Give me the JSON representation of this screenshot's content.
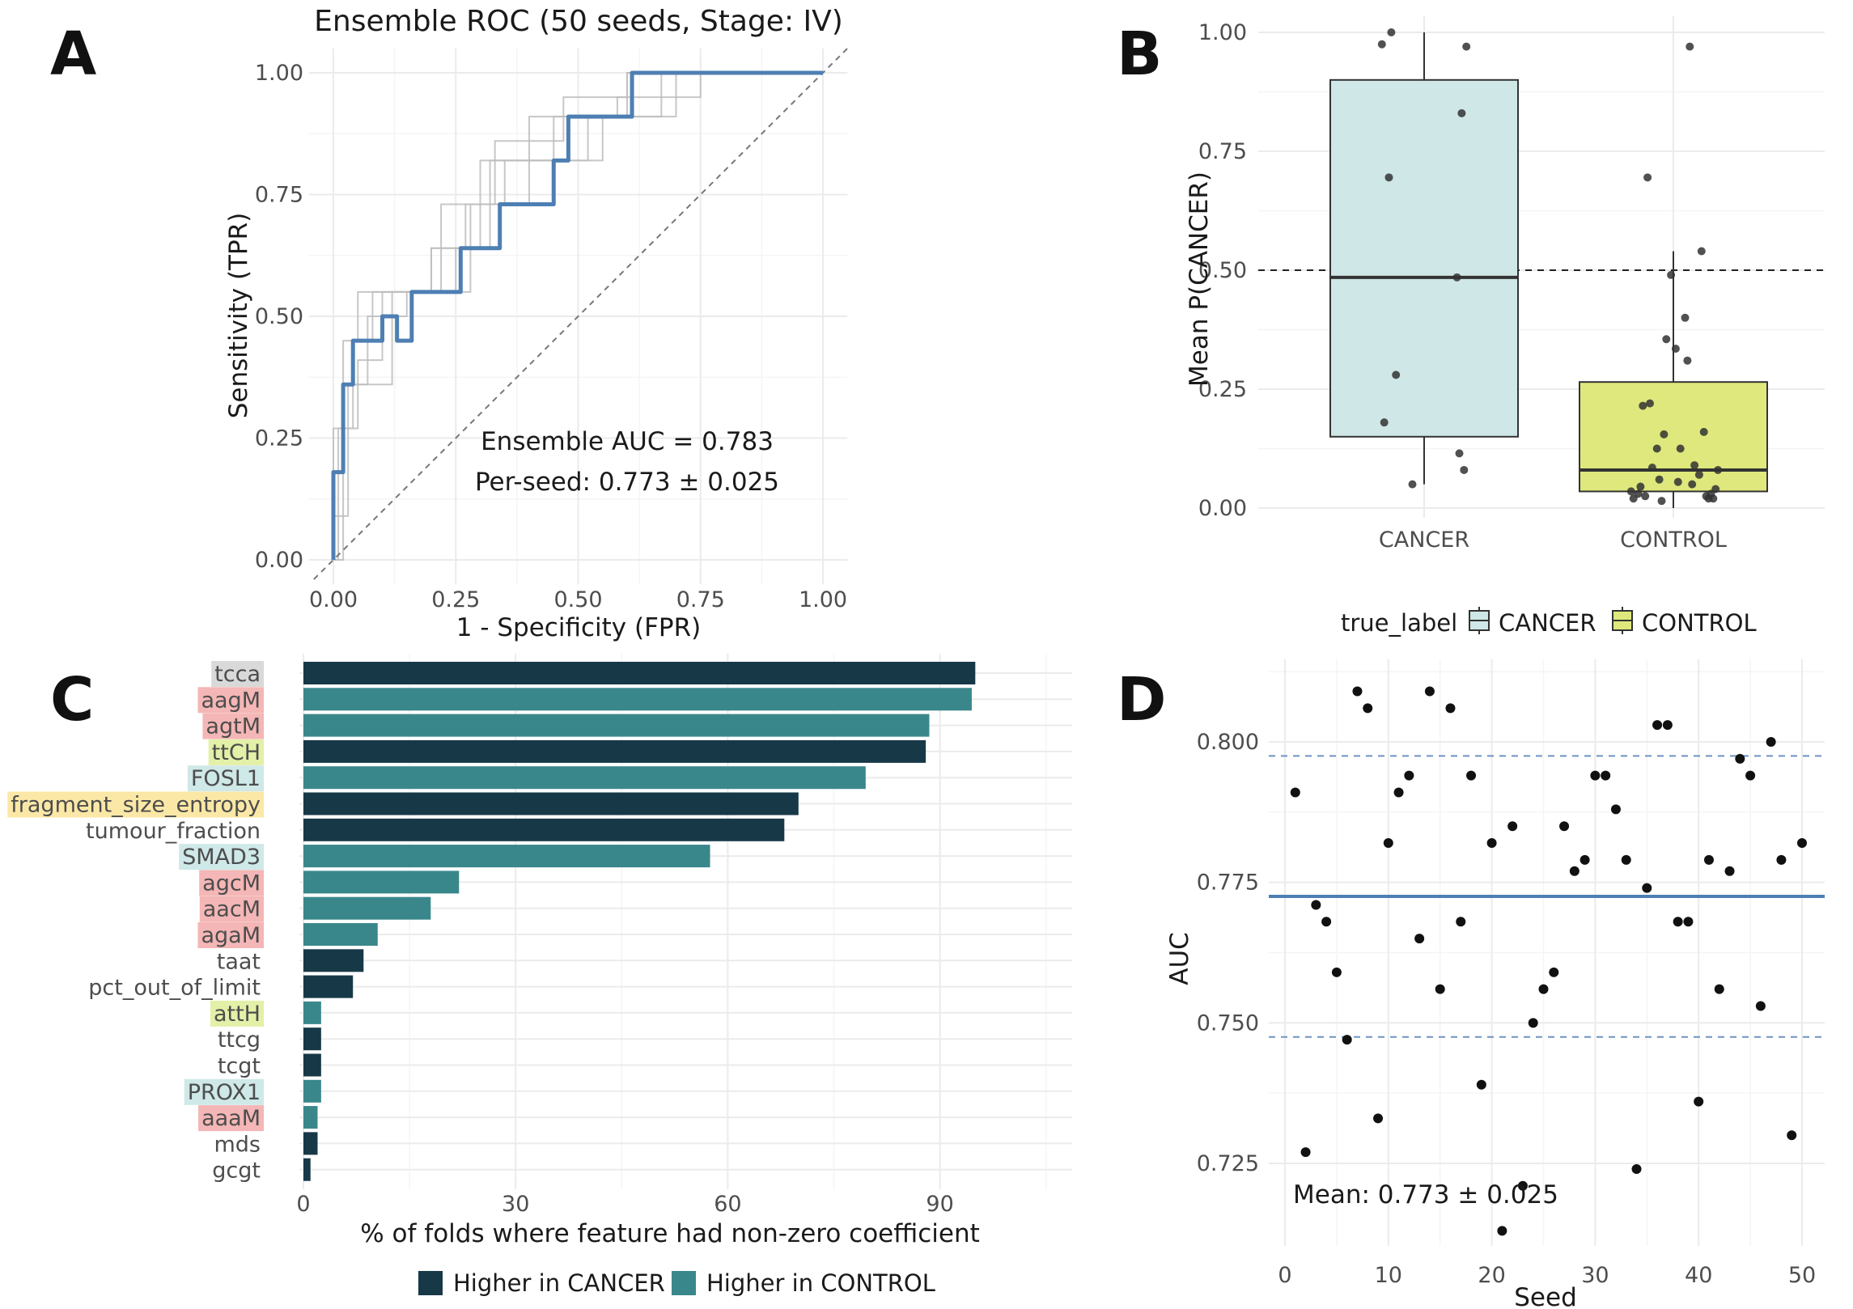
{
  "panels": [
    {
      "label": "A"
    },
    {
      "label": "B"
    },
    {
      "label": "C"
    },
    {
      "label": "D"
    }
  ],
  "chart_data": [
    {
      "panel": "A",
      "type": "line",
      "title": "Ensemble ROC (50 seeds, Stage: IV)",
      "xlabel": "1 - Specificity (FPR)",
      "ylabel": "Sensitivity (TPR)",
      "xlim": [
        0,
        1
      ],
      "ylim": [
        0,
        1
      ],
      "xticks": [
        "0.00",
        "0.25",
        "0.50",
        "0.75",
        "1.00"
      ],
      "yticks": [
        "0.00",
        "0.25",
        "0.50",
        "0.75",
        "1.00"
      ],
      "annotations": [
        "Ensemble AUC = 0.783",
        "Per-seed: 0.773 ± 0.025"
      ],
      "series": [
        {
          "role": "ensemble",
          "color": "#4e7fb3",
          "x": [
            0,
            0,
            0.02,
            0.02,
            0.04,
            0.04,
            0.06,
            0.06,
            0.1,
            0.1,
            0.13,
            0.13,
            0.16,
            0.16,
            0.23,
            0.23,
            0.26,
            0.26,
            0.3,
            0.3,
            0.34,
            0.34,
            0.38,
            0.38,
            0.42,
            0.42,
            0.45,
            0.45,
            0.48,
            0.48,
            0.61,
            0.61,
            0.65,
            0.65,
            1
          ],
          "y": [
            0,
            0.18,
            0.18,
            0.36,
            0.36,
            0.45,
            0.45,
            0.45,
            0.45,
            0.5,
            0.5,
            0.45,
            0.45,
            0.55,
            0.55,
            0.55,
            0.55,
            0.64,
            0.64,
            0.64,
            0.64,
            0.73,
            0.73,
            0.73,
            0.73,
            0.73,
            0.73,
            0.82,
            0.82,
            0.91,
            0.91,
            1,
            1,
            1,
            1
          ]
        },
        {
          "role": "per-seed",
          "color": "#bdbdbd",
          "x": [
            0,
            0,
            0.02,
            0.02,
            0.05,
            0.05,
            0.1,
            0.1,
            0.2,
            0.2,
            0.3,
            0.3,
            0.4,
            0.4,
            0.5,
            0.5,
            0.6,
            0.6,
            1
          ],
          "y": [
            0,
            0.18,
            0.18,
            0.45,
            0.45,
            0.55,
            0.55,
            0.55,
            0.55,
            0.64,
            0.64,
            0.82,
            0.82,
            0.91,
            0.91,
            0.91,
            0.91,
            1,
            1
          ]
        },
        {
          "role": "per-seed",
          "color": "#bdbdbd",
          "x": [
            0,
            0.01,
            0.01,
            0.04,
            0.04,
            0.08,
            0.08,
            0.2,
            0.2,
            0.27,
            0.27,
            0.35,
            0.35,
            0.55,
            0.55,
            0.7,
            0.7,
            1
          ],
          "y": [
            0,
            0,
            0.27,
            0.27,
            0.45,
            0.45,
            0.55,
            0.55,
            0.64,
            0.64,
            0.73,
            0.73,
            0.82,
            0.82,
            0.91,
            0.91,
            1,
            1
          ]
        },
        {
          "role": "per-seed",
          "color": "#bdbdbd",
          "x": [
            0,
            0,
            0.03,
            0.03,
            0.12,
            0.12,
            0.25,
            0.25,
            0.32,
            0.32,
            0.45,
            0.45,
            0.58,
            0.58,
            0.75,
            0.75,
            1
          ],
          "y": [
            0,
            0.09,
            0.09,
            0.36,
            0.36,
            0.55,
            0.55,
            0.64,
            0.64,
            0.82,
            0.82,
            0.91,
            0.91,
            0.95,
            0.95,
            1,
            1
          ]
        },
        {
          "role": "per-seed",
          "color": "#bdbdbd",
          "x": [
            0,
            0.02,
            0.02,
            0.07,
            0.07,
            0.15,
            0.15,
            0.28,
            0.28,
            0.4,
            0.4,
            0.52,
            0.52,
            0.67,
            0.67,
            1
          ],
          "y": [
            0,
            0,
            0.36,
            0.36,
            0.5,
            0.5,
            0.55,
            0.55,
            0.73,
            0.73,
            0.82,
            0.82,
            0.91,
            0.91,
            1,
            1
          ]
        },
        {
          "role": "per-seed",
          "color": "#bdbdbd",
          "x": [
            0,
            0,
            0.05,
            0.05,
            0.1,
            0.1,
            0.22,
            0.22,
            0.33,
            0.33,
            0.47,
            0.47,
            0.6,
            0.6,
            1
          ],
          "y": [
            0,
            0.27,
            0.27,
            0.41,
            0.41,
            0.55,
            0.55,
            0.73,
            0.73,
            0.86,
            0.86,
            0.95,
            0.95,
            1,
            1
          ]
        }
      ],
      "reference_line": {
        "x": [
          0,
          1
        ],
        "y": [
          0,
          1
        ],
        "style": "dashed"
      }
    },
    {
      "panel": "B",
      "type": "box",
      "categories": [
        "CANCER",
        "CONTROL"
      ],
      "ylabel": "Mean P(CANCER)",
      "ylim": [
        0,
        1
      ],
      "yticks": [
        "0.00",
        "0.25",
        "0.50",
        "0.75",
        "1.00"
      ],
      "threshold": 0.5,
      "legend": {
        "title": "true_label",
        "entries": [
          "CANCER",
          "CONTROL"
        ],
        "position": "bottom"
      },
      "series": [
        {
          "name": "CANCER",
          "color": "#cfe7e6",
          "min": 0.05,
          "q1": 0.15,
          "median": 0.485,
          "q3": 0.9,
          "max": 1.0,
          "points": [
            1.0,
            0.97,
            0.975,
            0.83,
            0.695,
            0.485,
            0.28,
            0.18,
            0.115,
            0.08,
            0.05
          ]
        },
        {
          "name": "CONTROL",
          "color": "#dfe87c",
          "min": 0.0,
          "q1": 0.035,
          "median": 0.08,
          "q3": 0.265,
          "max": 0.54,
          "points": [
            0.97,
            0.695,
            0.54,
            0.49,
            0.4,
            0.355,
            0.335,
            0.31,
            0.22,
            0.215,
            0.16,
            0.155,
            0.125,
            0.125,
            0.09,
            0.085,
            0.08,
            0.07,
            0.06,
            0.055,
            0.05,
            0.045,
            0.04,
            0.035,
            0.03,
            0.03,
            0.025,
            0.025,
            0.02,
            0.02,
            0.02,
            0.015
          ]
        }
      ]
    },
    {
      "panel": "C",
      "type": "bar",
      "orientation": "horizontal",
      "xlabel": "% of folds where feature had non-zero coefficient",
      "xlim": [
        0,
        115
      ],
      "xticks": [
        0,
        30,
        60,
        90
      ],
      "categories": [
        "tcca",
        "aagM",
        "agtM",
        "ttCH",
        "FOSL1",
        "fragment_size_entropy",
        "tumour_fraction",
        "SMAD3",
        "agcM",
        "aacM",
        "agaM",
        "taat",
        "pct_out_of_limit",
        "attH",
        "ttcg",
        "tcgt",
        "PROX1",
        "aaaM",
        "mds",
        "gcgt"
      ],
      "values": [
        95,
        94.5,
        88.5,
        88,
        79.5,
        70,
        68,
        57.5,
        22,
        18,
        10.5,
        8.5,
        7,
        2.5,
        2.5,
        2.5,
        2.5,
        2,
        2,
        1
      ],
      "direction": [
        "Higher in CANCER",
        "Higher in CONTROL",
        "Higher in CONTROL",
        "Higher in CANCER",
        "Higher in CONTROL",
        "Higher in CANCER",
        "Higher in CANCER",
        "Higher in CONTROL",
        "Higher in CONTROL",
        "Higher in CONTROL",
        "Higher in CONTROL",
        "Higher in CANCER",
        "Higher in CANCER",
        "Higher in CONTROL",
        "Higher in CANCER",
        "Higher in CANCER",
        "Higher in CONTROL",
        "Higher in CONTROL",
        "Higher in CANCER",
        "Higher in CANCER"
      ],
      "label_highlight": [
        "#d9d9d9",
        "#f4b6b6",
        "#f4b6b6",
        "#e3f0a8",
        "#cfe8e8",
        "#fbe8a6",
        "",
        "#cfe8e8",
        "#f4b6b6",
        "#f4b6b6",
        "#f4b6b6",
        "",
        "",
        "#e3f0a8",
        "",
        "",
        "#cfe8e8",
        "#f4b6b6",
        "",
        ""
      ],
      "colors": {
        "Higher in CANCER": "#173847",
        "Higher in CONTROL": "#3a878b"
      },
      "legend": {
        "entries": [
          "Higher in CANCER",
          "Higher in CONTROL"
        ],
        "position": "bottom"
      }
    },
    {
      "panel": "D",
      "type": "scatter",
      "xlabel": "Seed",
      "ylabel": "AUC",
      "xlim": [
        -1.5,
        52
      ],
      "ylim": [
        0.7115,
        0.814
      ],
      "xticks": [
        "0",
        "10",
        "20",
        "30",
        "40",
        "50"
      ],
      "yticks": [
        "0.725",
        "0.750",
        "0.775",
        "0.800"
      ],
      "mean_line": 0.7725,
      "sd_lines": [
        0.7475,
        0.7975
      ],
      "annotation": "Mean: 0.773 ± 0.025",
      "x": [
        1,
        2,
        3,
        4,
        5,
        6,
        7,
        8,
        9,
        10,
        11,
        12,
        13,
        14,
        15,
        16,
        17,
        18,
        19,
        20,
        21,
        22,
        23,
        24,
        25,
        26,
        27,
        28,
        29,
        30,
        31,
        32,
        33,
        34,
        35,
        36,
        37,
        38,
        39,
        40,
        41,
        42,
        43,
        44,
        45,
        46,
        47,
        48,
        49,
        50
      ],
      "y": [
        0.791,
        0.727,
        0.771,
        0.768,
        0.759,
        0.747,
        0.809,
        0.806,
        0.733,
        0.782,
        0.791,
        0.794,
        0.765,
        0.809,
        0.756,
        0.806,
        0.768,
        0.794,
        0.739,
        0.782,
        0.713,
        0.785,
        0.721,
        0.75,
        0.756,
        0.759,
        0.785,
        0.777,
        0.779,
        0.794,
        0.794,
        0.788,
        0.779,
        0.724,
        0.774,
        0.803,
        0.803,
        0.768,
        0.768,
        0.736,
        0.779,
        0.756,
        0.777,
        0.797,
        0.794,
        0.753,
        0.8,
        0.779,
        0.73,
        0.782
      ]
    }
  ]
}
